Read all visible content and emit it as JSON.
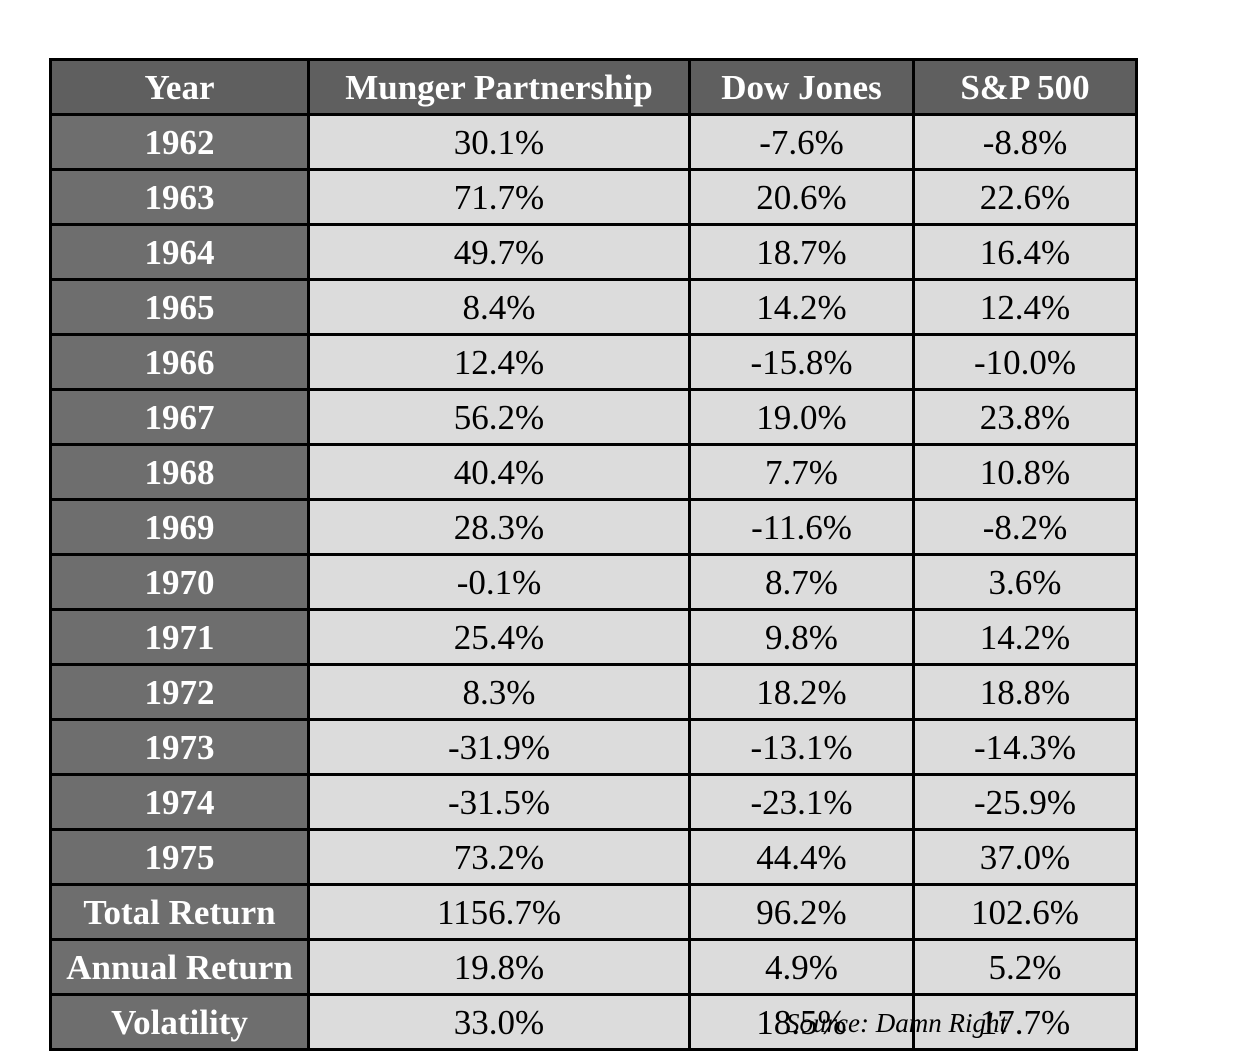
{
  "chart_data": {
    "type": "table",
    "columns": [
      "Year",
      "Munger Partnership",
      "Dow Jones",
      "S&P 500"
    ],
    "rows": [
      [
        "1962",
        "30.1%",
        "-7.6%",
        "-8.8%"
      ],
      [
        "1963",
        "71.7%",
        "20.6%",
        "22.6%"
      ],
      [
        "1964",
        "49.7%",
        "18.7%",
        "16.4%"
      ],
      [
        "1965",
        "8.4%",
        "14.2%",
        "12.4%"
      ],
      [
        "1966",
        "12.4%",
        "-15.8%",
        "-10.0%"
      ],
      [
        "1967",
        "56.2%",
        "19.0%",
        "23.8%"
      ],
      [
        "1968",
        "40.4%",
        "7.7%",
        "10.8%"
      ],
      [
        "1969",
        "28.3%",
        "-11.6%",
        "-8.2%"
      ],
      [
        "1970",
        "-0.1%",
        "8.7%",
        "3.6%"
      ],
      [
        "1971",
        "25.4%",
        "9.8%",
        "14.2%"
      ],
      [
        "1972",
        "8.3%",
        "18.2%",
        "18.8%"
      ],
      [
        "1973",
        "-31.9%",
        "-13.1%",
        "-14.3%"
      ],
      [
        "1974",
        "-31.5%",
        "-23.1%",
        "-25.9%"
      ],
      [
        "1975",
        "73.2%",
        "44.4%",
        "37.0%"
      ],
      [
        "Total Return",
        "1156.7%",
        "96.2%",
        "102.6%"
      ],
      [
        "Annual Return",
        "19.8%",
        "4.9%",
        "5.2%"
      ],
      [
        "Volatility",
        "33.0%",
        "18.5%",
        "17.7%"
      ]
    ],
    "source": "Source: Damn Right"
  },
  "colors": {
    "header_bg": "#5f5f5f",
    "label_bg": "#6e6e6e",
    "cell_bg": "#dcdcdc",
    "border": "#000000"
  }
}
